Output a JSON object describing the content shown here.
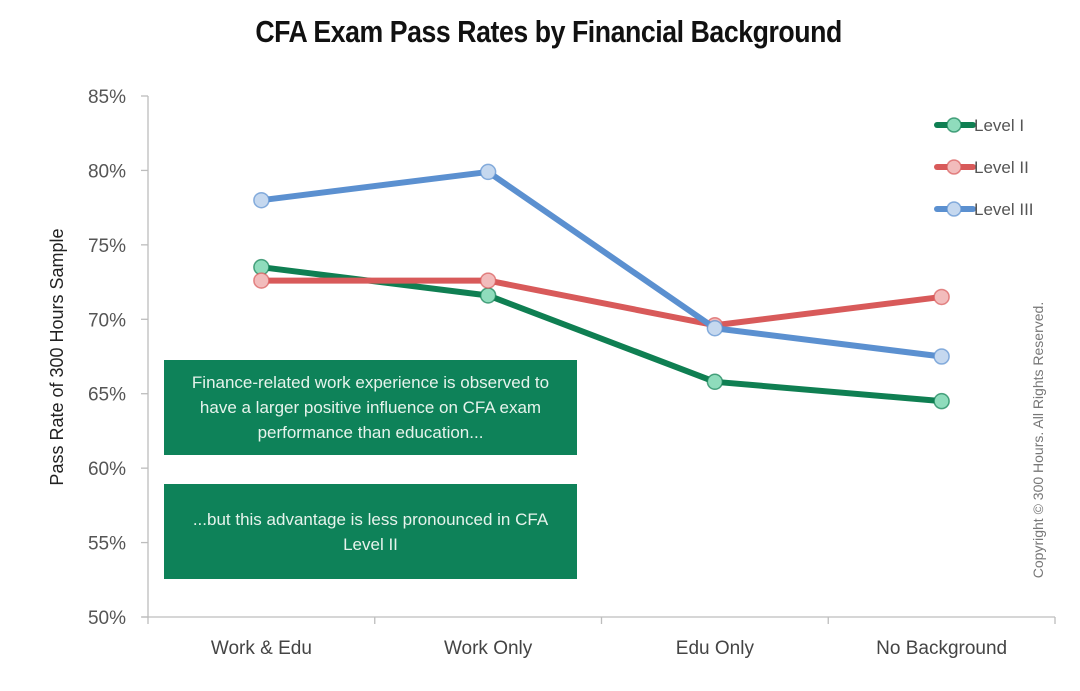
{
  "title": "CFA Exam Pass Rates by Financial Background",
  "y_axis_label": "Pass Rate of 300 Hours Sample",
  "y_ticks": [
    "85%",
    "80%",
    "75%",
    "70%",
    "65%",
    "60%",
    "55%",
    "50%"
  ],
  "categories": [
    "Work & Edu",
    "Work Only",
    "Edu Only",
    "No Background"
  ],
  "legend": [
    "Level I",
    "Level II",
    "Level III"
  ],
  "annotations": [
    "Finance-related work experience is observed to have a larger positive influence on CFA exam performance than education...",
    "...but this advantage is less pronounced in CFA Level II"
  ],
  "copyright": "Copyright © 300 Hours. All Rights Reserved.",
  "colors": {
    "level1_line": "#0f7f52",
    "level1_marker": "#8fdcbc",
    "level2_line": "#d85a5a",
    "level2_marker": "#f2bcbc",
    "level3_line": "#5b90d0",
    "level3_marker": "#c5d8ef",
    "note_bg": "#0e8259"
  },
  "chart_data": {
    "type": "line",
    "title": "CFA Exam Pass Rates by Financial Background",
    "xlabel": "",
    "ylabel": "Pass Rate of 300 Hours Sample",
    "categories": [
      "Work & Edu",
      "Work Only",
      "Edu Only",
      "No Background"
    ],
    "series": [
      {
        "name": "Level I",
        "values": [
          73.5,
          71.6,
          65.8,
          64.5
        ]
      },
      {
        "name": "Level II",
        "values": [
          72.6,
          72.6,
          69.6,
          71.5
        ]
      },
      {
        "name": "Level III",
        "values": [
          78.0,
          79.9,
          69.4,
          67.5
        ]
      }
    ],
    "ylim": [
      50,
      85
    ],
    "y_unit": "%",
    "y_tick_step": 5,
    "grid": false,
    "legend_position": "top-right",
    "annotations": [
      "Finance-related work experience is observed to have a larger positive influence on CFA exam performance than education...",
      "...but this advantage is less pronounced in CFA Level II"
    ]
  }
}
